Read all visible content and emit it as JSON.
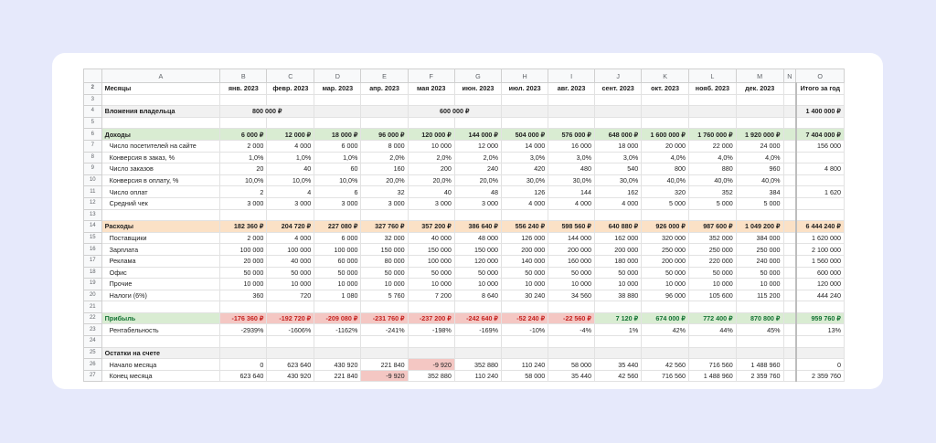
{
  "columns": [
    "A",
    "B",
    "C",
    "D",
    "E",
    "F",
    "G",
    "H",
    "I",
    "J",
    "K",
    "L",
    "M",
    "N",
    "O"
  ],
  "header_row": {
    "num": "2",
    "label": "Месяцы",
    "months": [
      "янв. 2023",
      "февр. 2023",
      "мар. 2023",
      "апр. 2023",
      "мая 2023",
      "июн. 2023",
      "июл. 2023",
      "авг. 2023",
      "сент. 2023",
      "окт. 2023",
      "нояб. 2023",
      "дек. 2023"
    ],
    "total": "Итого за год"
  },
  "blank_rows": {
    "r3": "3",
    "r5": "5",
    "r13": "13",
    "r21": "21",
    "r24": "24"
  },
  "owner": {
    "num": "4",
    "label": "Вложения владельца",
    "jan": "800 000 ₽",
    "may": "600 000 ₽",
    "total": "1 400 000 ₽"
  },
  "income": {
    "num": "6",
    "label": "Доходы",
    "values": [
      "6 000 ₽",
      "12 000 ₽",
      "18 000 ₽",
      "96 000 ₽",
      "120 000 ₽",
      "144 000 ₽",
      "504 000 ₽",
      "576 000 ₽",
      "648 000 ₽",
      "1 600 000 ₽",
      "1 760 000 ₽",
      "1 920 000 ₽"
    ],
    "total": "7 404 000 ₽"
  },
  "income_rows": [
    {
      "num": "7",
      "label": "Число посетителей на сайте",
      "values": [
        "2 000",
        "4 000",
        "6 000",
        "8 000",
        "10 000",
        "12 000",
        "14 000",
        "16 000",
        "18 000",
        "20 000",
        "22 000",
        "24 000"
      ],
      "total": "156 000"
    },
    {
      "num": "8",
      "label": "Конверсия в заказ, %",
      "values": [
        "1,0%",
        "1,0%",
        "1,0%",
        "2,0%",
        "2,0%",
        "2,0%",
        "3,0%",
        "3,0%",
        "3,0%",
        "4,0%",
        "4,0%",
        "4,0%"
      ],
      "total": ""
    },
    {
      "num": "9",
      "label": "Число заказов",
      "values": [
        "20",
        "40",
        "60",
        "160",
        "200",
        "240",
        "420",
        "480",
        "540",
        "800",
        "880",
        "960"
      ],
      "total": "4 800"
    },
    {
      "num": "10",
      "label": "Конверсия в оплату, %",
      "values": [
        "10,0%",
        "10,0%",
        "10,0%",
        "20,0%",
        "20,0%",
        "20,0%",
        "30,0%",
        "30,0%",
        "30,0%",
        "40,0%",
        "40,0%",
        "40,0%"
      ],
      "total": ""
    },
    {
      "num": "11",
      "label": "Число оплат",
      "values": [
        "2",
        "4",
        "6",
        "32",
        "40",
        "48",
        "126",
        "144",
        "162",
        "320",
        "352",
        "384"
      ],
      "total": "1 620"
    },
    {
      "num": "12",
      "label": "Средний чек",
      "values": [
        "3 000",
        "3 000",
        "3 000",
        "3 000",
        "3 000",
        "3 000",
        "4 000",
        "4 000",
        "4 000",
        "5 000",
        "5 000",
        "5 000"
      ],
      "total": ""
    }
  ],
  "expenses": {
    "num": "14",
    "label": "Расходы",
    "values": [
      "182 360 ₽",
      "204 720 ₽",
      "227 080 ₽",
      "327 760 ₽",
      "357 200 ₽",
      "386 640 ₽",
      "556 240 ₽",
      "598 560 ₽",
      "640 880 ₽",
      "926 000 ₽",
      "987 600 ₽",
      "1 049 200 ₽"
    ],
    "total": "6 444 240 ₽"
  },
  "expense_rows": [
    {
      "num": "15",
      "label": "Поставщики",
      "values": [
        "2 000",
        "4 000",
        "6 000",
        "32 000",
        "40 000",
        "48 000",
        "126 000",
        "144 000",
        "162 000",
        "320 000",
        "352 000",
        "384 000"
      ],
      "total": "1 620 000"
    },
    {
      "num": "16",
      "label": "Зарплата",
      "values": [
        "100 000",
        "100 000",
        "100 000",
        "150 000",
        "150 000",
        "150 000",
        "200 000",
        "200 000",
        "200 000",
        "250 000",
        "250 000",
        "250 000"
      ],
      "total": "2 100 000"
    },
    {
      "num": "17",
      "label": "Реклама",
      "values": [
        "20 000",
        "40 000",
        "60 000",
        "80 000",
        "100 000",
        "120 000",
        "140 000",
        "160 000",
        "180 000",
        "200 000",
        "220 000",
        "240 000"
      ],
      "total": "1 560 000"
    },
    {
      "num": "18",
      "label": "Офис",
      "values": [
        "50 000",
        "50 000",
        "50 000",
        "50 000",
        "50 000",
        "50 000",
        "50 000",
        "50 000",
        "50 000",
        "50 000",
        "50 000",
        "50 000"
      ],
      "total": "600 000"
    },
    {
      "num": "19",
      "label": "Прочие",
      "values": [
        "10 000",
        "10 000",
        "10 000",
        "10 000",
        "10 000",
        "10 000",
        "10 000",
        "10 000",
        "10 000",
        "10 000",
        "10 000",
        "10 000"
      ],
      "total": "120 000"
    },
    {
      "num": "20",
      "label": "Налоги (6%)",
      "values": [
        "360",
        "720",
        "1 080",
        "5 760",
        "7 200",
        "8 640",
        "30 240",
        "34 560",
        "38 880",
        "96 000",
        "105 600",
        "115 200"
      ],
      "total": "444 240"
    }
  ],
  "profit": {
    "num": "22",
    "label": "Прибыль",
    "values": [
      "-176 360 ₽",
      "-192 720 ₽",
      "-209 080 ₽",
      "-231 760 ₽",
      "-237 200 ₽",
      "-242 640 ₽",
      "-52 240 ₽",
      "-22 560 ₽",
      "7 120 ₽",
      "674 000 ₽",
      "772 400 ₽",
      "870 800 ₽"
    ],
    "total": "959 760 ₽"
  },
  "profitability": {
    "num": "23",
    "label": "Рентабельность",
    "values": [
      "-2939%",
      "-1606%",
      "-1162%",
      "-241%",
      "-198%",
      "-169%",
      "-10%",
      "-4%",
      "1%",
      "42%",
      "44%",
      "45%"
    ],
    "total": "13%"
  },
  "balance": {
    "num": "25",
    "label": "Остатки на счете"
  },
  "balance_rows": [
    {
      "num": "26",
      "label": "Начало месяца",
      "values": [
        "0",
        "623 640",
        "430 920",
        "221 840",
        "-9 920",
        "352 880",
        "110 240",
        "58 000",
        "35 440",
        "42 560",
        "716 560",
        "1 488 960"
      ],
      "total": "0"
    },
    {
      "num": "27",
      "label": "Конец месяца",
      "values": [
        "623 640",
        "430 920",
        "221 840",
        "-9 920",
        "352 880",
        "110 240",
        "58 000",
        "35 440",
        "42 560",
        "716 560",
        "1 488 960",
        "2 359 760"
      ],
      "total": "2 359 760"
    }
  ],
  "colors": {
    "background": "#e6e9fb",
    "green_band": "#d9ecd2",
    "orange_band": "#fbe1c6",
    "negative_cell": "#f4c7c3",
    "negative_text": "#c5221f",
    "positive_text": "#137333"
  }
}
